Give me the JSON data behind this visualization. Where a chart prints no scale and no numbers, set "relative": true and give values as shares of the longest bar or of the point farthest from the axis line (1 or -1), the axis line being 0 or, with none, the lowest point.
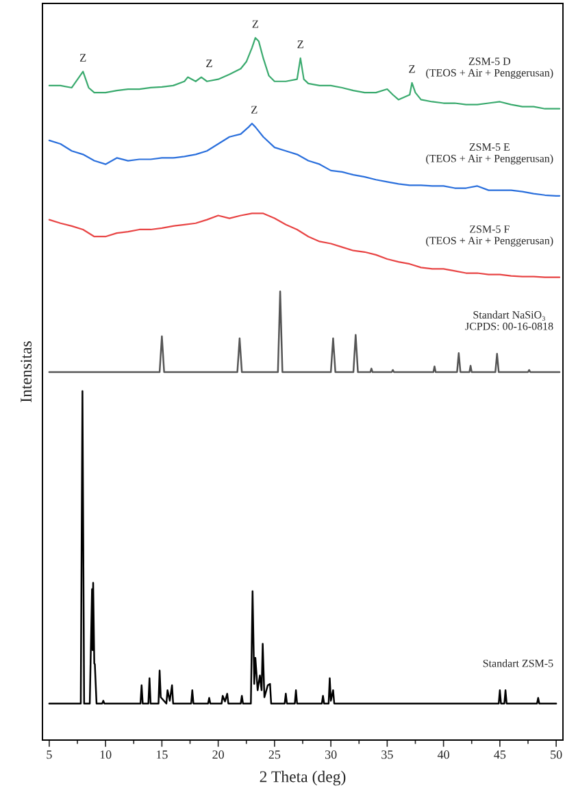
{
  "chart_data": {
    "type": "line",
    "relative": true,
    "xlabel": "2 Theta (deg)",
    "ylabel": "Intensitas",
    "xlim": [
      4.4,
      50.6
    ],
    "xticks": [
      5,
      10,
      15,
      20,
      25,
      30,
      35,
      40,
      45,
      50
    ],
    "grid": false,
    "legend": false,
    "marker": "none",
    "line_style": "solid",
    "series": [
      {
        "name": "ZSM-5 D\n(TEOS + Air + Penggerusan)",
        "color": "#3aaa6e",
        "x": [
          5,
          6,
          7,
          8,
          8.5,
          9,
          10,
          11,
          12,
          13,
          14,
          15,
          16,
          17,
          17.3,
          18,
          18.5,
          19,
          20,
          21,
          22,
          22.5,
          23,
          23.3,
          23.6,
          24,
          24.5,
          25,
          26,
          27,
          27.3,
          27.6,
          28,
          29,
          30,
          31,
          32,
          33,
          34,
          35,
          35.5,
          36,
          37,
          37.2,
          37.5,
          38,
          39,
          40,
          41,
          42,
          43,
          44,
          45,
          46,
          47,
          48,
          49,
          50,
          50.3
        ],
        "values": [
          0.932,
          0.932,
          0.929,
          0.952,
          0.929,
          0.922,
          0.922,
          0.925,
          0.927,
          0.927,
          0.929,
          0.93,
          0.932,
          0.938,
          0.944,
          0.938,
          0.944,
          0.938,
          0.941,
          0.948,
          0.956,
          0.966,
          0.986,
          1.0,
          0.995,
          0.971,
          0.946,
          0.938,
          0.938,
          0.941,
          0.971,
          0.941,
          0.935,
          0.932,
          0.932,
          0.929,
          0.925,
          0.922,
          0.922,
          0.927,
          0.919,
          0.912,
          0.919,
          0.936,
          0.922,
          0.912,
          0.909,
          0.907,
          0.907,
          0.905,
          0.905,
          0.907,
          0.909,
          0.905,
          0.902,
          0.902,
          0.899,
          0.899,
          0.899
        ]
      },
      {
        "name": "ZSM-5 E\n(TEOS + Air + Penggerusan)",
        "color": "#2a6fdc",
        "x": [
          5,
          6,
          7,
          8,
          9,
          10,
          11,
          12,
          13,
          14,
          15,
          16,
          17,
          18,
          19,
          20,
          21,
          22,
          22.7,
          23,
          23.3,
          24,
          25,
          26,
          27,
          28,
          29,
          30,
          31,
          32,
          33,
          34,
          35,
          36,
          37,
          38,
          39,
          40,
          41,
          42,
          43,
          44,
          45,
          46,
          47,
          48,
          49,
          50,
          50.3
        ],
        "values": [
          0.854,
          0.849,
          0.839,
          0.834,
          0.825,
          0.82,
          0.829,
          0.825,
          0.827,
          0.827,
          0.829,
          0.829,
          0.831,
          0.834,
          0.839,
          0.849,
          0.859,
          0.863,
          0.873,
          0.878,
          0.873,
          0.859,
          0.844,
          0.839,
          0.834,
          0.825,
          0.82,
          0.811,
          0.809,
          0.805,
          0.802,
          0.798,
          0.795,
          0.792,
          0.79,
          0.79,
          0.789,
          0.789,
          0.786,
          0.786,
          0.789,
          0.783,
          0.783,
          0.783,
          0.781,
          0.778,
          0.776,
          0.775,
          0.775
        ]
      },
      {
        "name": "ZSM-5 F\n(TEOS + Air + Penggerusan)",
        "color": "#e84444",
        "x": [
          5,
          6,
          7,
          8,
          9,
          10,
          11,
          12,
          13,
          14,
          15,
          16,
          17,
          18,
          19,
          20,
          21,
          22,
          23,
          24,
          25,
          26,
          27,
          28,
          29,
          30,
          31,
          32,
          33,
          34,
          35,
          36,
          37,
          38,
          39,
          40,
          41,
          42,
          43,
          44,
          45,
          46,
          47,
          48,
          49,
          50,
          50.3
        ],
        "values": [
          0.741,
          0.736,
          0.732,
          0.727,
          0.717,
          0.717,
          0.722,
          0.724,
          0.727,
          0.727,
          0.729,
          0.732,
          0.734,
          0.736,
          0.741,
          0.747,
          0.743,
          0.747,
          0.75,
          0.75,
          0.743,
          0.734,
          0.727,
          0.717,
          0.71,
          0.707,
          0.702,
          0.697,
          0.695,
          0.691,
          0.685,
          0.681,
          0.678,
          0.673,
          0.671,
          0.671,
          0.668,
          0.665,
          0.665,
          0.663,
          0.663,
          0.661,
          0.66,
          0.66,
          0.659,
          0.659,
          0.659
        ]
      },
      {
        "name": "Standart NaSiO₃\nJCPDS: 00-16-0818",
        "color": "#555555",
        "x": [
          5,
          14.8,
          15.0,
          15.2,
          21.7,
          21.9,
          22.1,
          25.3,
          25.5,
          25.7,
          30.0,
          30.2,
          30.4,
          32.0,
          32.2,
          32.4,
          33.5,
          33.6,
          33.7,
          35.4,
          35.5,
          35.6,
          39.1,
          39.2,
          39.3,
          41.2,
          41.35,
          41.5,
          42.3,
          42.4,
          42.5,
          44.6,
          44.75,
          44.9,
          47.5,
          47.6,
          47.7,
          50.3
        ],
        "values": [
          0.524,
          0.524,
          0.575,
          0.524,
          0.524,
          0.572,
          0.524,
          0.524,
          0.639,
          0.524,
          0.524,
          0.572,
          0.524,
          0.524,
          0.577,
          0.524,
          0.524,
          0.529,
          0.524,
          0.524,
          0.527,
          0.524,
          0.524,
          0.532,
          0.524,
          0.524,
          0.551,
          0.524,
          0.524,
          0.533,
          0.524,
          0.524,
          0.55,
          0.524,
          0.524,
          0.527,
          0.524,
          0.524
        ]
      },
      {
        "name": "Standart ZSM-5",
        "color": "#000000",
        "x": [
          5,
          7.8,
          7.95,
          8.1,
          8.6,
          8.8,
          8.85,
          8.9,
          9.0,
          9.05,
          9.2,
          9.7,
          9.8,
          9.9,
          13.1,
          13.2,
          13.3,
          13.8,
          13.9,
          14.0,
          14.7,
          14.8,
          14.9,
          15.4,
          15.5,
          15.7,
          15.9,
          16.0,
          17.6,
          17.7,
          17.8,
          19.1,
          19.2,
          19.3,
          20.3,
          20.4,
          20.6,
          20.8,
          20.9,
          22.0,
          22.1,
          22.2,
          22.9,
          23.05,
          23.2,
          23.3,
          23.5,
          23.7,
          23.85,
          23.95,
          24.1,
          24.4,
          24.6,
          24.7,
          25.9,
          26.0,
          26.1,
          26.8,
          26.9,
          27.0,
          29.2,
          29.3,
          29.4,
          29.8,
          29.9,
          30.0,
          30.2,
          30.3,
          44.9,
          45.0,
          45.1,
          45.4,
          45.5,
          45.6,
          48.3,
          48.4,
          48.5,
          50.0
        ],
        "values": [
          0.052,
          0.052,
          0.497,
          0.052,
          0.052,
          0.215,
          0.128,
          0.224,
          0.109,
          0.108,
          0.052,
          0.052,
          0.056,
          0.052,
          0.052,
          0.078,
          0.052,
          0.052,
          0.088,
          0.052,
          0.052,
          0.099,
          0.061,
          0.052,
          0.071,
          0.056,
          0.078,
          0.052,
          0.052,
          0.071,
          0.052,
          0.052,
          0.06,
          0.052,
          0.052,
          0.063,
          0.055,
          0.066,
          0.052,
          0.052,
          0.063,
          0.052,
          0.052,
          0.212,
          0.08,
          0.117,
          0.071,
          0.092,
          0.071,
          0.137,
          0.061,
          0.078,
          0.08,
          0.052,
          0.052,
          0.066,
          0.052,
          0.052,
          0.071,
          0.052,
          0.052,
          0.063,
          0.052,
          0.052,
          0.088,
          0.056,
          0.071,
          0.052,
          0.052,
          0.071,
          0.052,
          0.052,
          0.071,
          0.052,
          0.052,
          0.06,
          0.052,
          0.052
        ]
      }
    ],
    "annotations": [
      {
        "text": "Z",
        "x": 8.0,
        "y": 0.952
      },
      {
        "text": "Z",
        "x": 19.2,
        "y": 0.944
      },
      {
        "text": "Z",
        "x": 23.3,
        "y": 1.0
      },
      {
        "text": "Z",
        "x": 27.3,
        "y": 0.971
      },
      {
        "text": "Z",
        "x": 37.2,
        "y": 0.936
      },
      {
        "text": "Z",
        "x": 23.2,
        "y": 0.878
      }
    ]
  }
}
